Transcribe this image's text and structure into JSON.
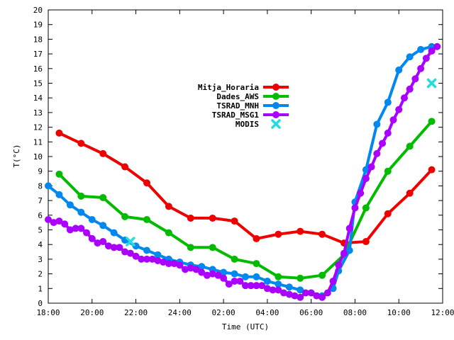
{
  "chart_data": {
    "type": "line",
    "title": "",
    "xlabel": "Time (UTC)",
    "ylabel": "T(°C)",
    "xlim": [
      "18:00",
      "12:00"
    ],
    "ylim": [
      0,
      20
    ],
    "x_ticks": [
      "18:00",
      "20:00",
      "22:00",
      "24:00",
      "02:00",
      "04:00",
      "06:00",
      "08:00",
      "10:00",
      "12:00"
    ],
    "y_ticks": [
      0,
      1,
      2,
      3,
      4,
      5,
      6,
      7,
      8,
      9,
      10,
      11,
      12,
      13,
      14,
      15,
      16,
      17,
      18,
      19,
      20
    ],
    "grid": false,
    "legend_position": "center",
    "series": [
      {
        "name": "Mitja_Horaria",
        "color": "#ee0000",
        "marker": "circle",
        "points": [
          [
            "18:30",
            11.6
          ],
          [
            "19:30",
            10.9
          ],
          [
            "20:30",
            10.2
          ],
          [
            "21:30",
            9.3
          ],
          [
            "22:30",
            8.2
          ],
          [
            "23:30",
            6.6
          ],
          [
            "00:30",
            5.8
          ],
          [
            "01:30",
            5.8
          ],
          [
            "02:30",
            5.6
          ],
          [
            "03:30",
            4.4
          ],
          [
            "04:30",
            4.7
          ],
          [
            "05:30",
            4.9
          ],
          [
            "06:30",
            4.7
          ],
          [
            "07:30",
            4.1
          ],
          [
            "08:30",
            4.2
          ],
          [
            "09:30",
            6.1
          ],
          [
            "10:30",
            7.5
          ],
          [
            "11:30",
            9.1
          ]
        ]
      },
      {
        "name": "Dades_AWS",
        "color": "#00bb00",
        "marker": "circle",
        "points": [
          [
            "18:30",
            8.8
          ],
          [
            "19:30",
            7.3
          ],
          [
            "20:30",
            7.2
          ],
          [
            "21:30",
            5.9
          ],
          [
            "22:30",
            5.7
          ],
          [
            "23:30",
            4.8
          ],
          [
            "00:30",
            3.8
          ],
          [
            "01:30",
            3.8
          ],
          [
            "02:30",
            3.0
          ],
          [
            "03:30",
            2.7
          ],
          [
            "04:30",
            1.8
          ],
          [
            "05:30",
            1.7
          ],
          [
            "06:30",
            1.9
          ],
          [
            "07:30",
            3.3
          ],
          [
            "08:30",
            6.5
          ],
          [
            "09:30",
            9.0
          ],
          [
            "10:30",
            10.7
          ],
          [
            "11:30",
            12.4
          ]
        ]
      },
      {
        "name": "TSRAD_MNH",
        "color": "#0088ee",
        "marker": "circle",
        "points": [
          [
            "18:00",
            8.0
          ],
          [
            "18:30",
            7.4
          ],
          [
            "19:00",
            6.7
          ],
          [
            "19:30",
            6.2
          ],
          [
            "20:00",
            5.7
          ],
          [
            "20:30",
            5.3
          ],
          [
            "21:00",
            4.8
          ],
          [
            "21:30",
            4.3
          ],
          [
            "22:00",
            3.9
          ],
          [
            "22:30",
            3.6
          ],
          [
            "23:00",
            3.3
          ],
          [
            "23:30",
            3.0
          ],
          [
            "00:00",
            2.8
          ],
          [
            "00:30",
            2.6
          ],
          [
            "01:00",
            2.5
          ],
          [
            "01:30",
            2.3
          ],
          [
            "02:00",
            2.1
          ],
          [
            "02:30",
            2.0
          ],
          [
            "03:00",
            1.8
          ],
          [
            "03:30",
            1.8
          ],
          [
            "04:00",
            1.5
          ],
          [
            "04:30",
            1.3
          ],
          [
            "05:00",
            1.1
          ],
          [
            "05:30",
            0.9
          ],
          [
            "06:00",
            0.7
          ],
          [
            "06:30",
            0.5
          ],
          [
            "07:00",
            1.0
          ],
          [
            "07:15",
            2.2
          ],
          [
            "07:45",
            3.6
          ],
          [
            "08:00",
            6.9
          ],
          [
            "08:30",
            9.1
          ],
          [
            "09:00",
            12.2
          ],
          [
            "09:30",
            13.7
          ],
          [
            "10:00",
            15.9
          ],
          [
            "10:30",
            16.8
          ],
          [
            "11:00",
            17.3
          ],
          [
            "11:30",
            17.5
          ]
        ]
      },
      {
        "name": "TSRAD_MSG1",
        "color": "#aa00ff",
        "marker": "circle",
        "points": [
          [
            "18:00",
            5.7
          ],
          [
            "18:15",
            5.5
          ],
          [
            "18:30",
            5.6
          ],
          [
            "18:45",
            5.4
          ],
          [
            "19:00",
            5.0
          ],
          [
            "19:15",
            5.1
          ],
          [
            "19:30",
            5.1
          ],
          [
            "19:45",
            4.8
          ],
          [
            "20:00",
            4.4
          ],
          [
            "20:15",
            4.1
          ],
          [
            "20:30",
            4.2
          ],
          [
            "20:45",
            3.9
          ],
          [
            "21:00",
            3.8
          ],
          [
            "21:15",
            3.8
          ],
          [
            "21:30",
            3.5
          ],
          [
            "21:45",
            3.4
          ],
          [
            "22:00",
            3.2
          ],
          [
            "22:15",
            3.0
          ],
          [
            "22:30",
            3.0
          ],
          [
            "22:45",
            3.0
          ],
          [
            "23:00",
            2.9
          ],
          [
            "23:15",
            2.8
          ],
          [
            "23:30",
            2.7
          ],
          [
            "23:45",
            2.7
          ],
          [
            "00:00",
            2.6
          ],
          [
            "00:15",
            2.3
          ],
          [
            "00:30",
            2.4
          ],
          [
            "00:45",
            2.3
          ],
          [
            "01:00",
            2.1
          ],
          [
            "01:15",
            1.9
          ],
          [
            "01:30",
            2.0
          ],
          [
            "01:45",
            1.9
          ],
          [
            "02:00",
            1.7
          ],
          [
            "02:15",
            1.3
          ],
          [
            "02:30",
            1.5
          ],
          [
            "02:45",
            1.5
          ],
          [
            "03:00",
            1.2
          ],
          [
            "03:15",
            1.2
          ],
          [
            "03:30",
            1.2
          ],
          [
            "03:45",
            1.2
          ],
          [
            "04:00",
            1.0
          ],
          [
            "04:15",
            0.9
          ],
          [
            "04:30",
            0.9
          ],
          [
            "04:45",
            0.7
          ],
          [
            "05:00",
            0.6
          ],
          [
            "05:15",
            0.5
          ],
          [
            "05:30",
            0.4
          ],
          [
            "05:45",
            0.7
          ],
          [
            "06:00",
            0.7
          ],
          [
            "06:15",
            0.5
          ],
          [
            "06:30",
            0.4
          ],
          [
            "06:45",
            0.7
          ],
          [
            "07:00",
            1.5
          ],
          [
            "07:15",
            2.6
          ],
          [
            "07:30",
            3.4
          ],
          [
            "07:45",
            5.1
          ],
          [
            "08:00",
            6.5
          ],
          [
            "08:15",
            7.5
          ],
          [
            "08:30",
            8.5
          ],
          [
            "08:45",
            9.3
          ],
          [
            "09:00",
            10.2
          ],
          [
            "09:15",
            10.9
          ],
          [
            "09:30",
            11.6
          ],
          [
            "09:45",
            12.5
          ],
          [
            "10:00",
            13.2
          ],
          [
            "10:15",
            14.0
          ],
          [
            "10:30",
            14.6
          ],
          [
            "10:45",
            15.3
          ],
          [
            "11:00",
            16.0
          ],
          [
            "11:15",
            16.7
          ],
          [
            "11:30",
            17.2
          ],
          [
            "11:45",
            17.5
          ]
        ]
      },
      {
        "name": "MODIS",
        "color": "#22dddd",
        "marker": "x",
        "line": false,
        "points": [
          [
            "21:45",
            4.2
          ],
          [
            "11:30",
            15.0
          ]
        ]
      }
    ]
  }
}
